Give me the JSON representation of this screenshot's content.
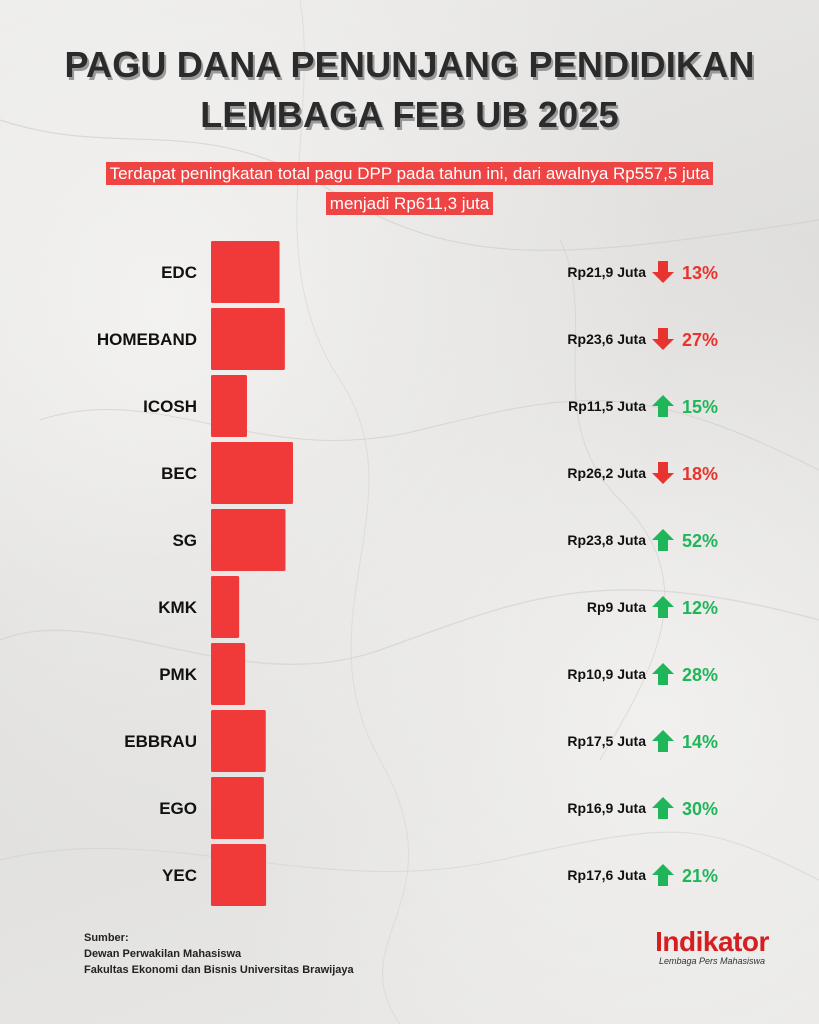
{
  "title_line1": "PAGU DANA PENUNJANG PENDIDIKAN",
  "title_line2": "LEMBAGA FEB UB 2025",
  "subtitle": "Terdapat peningkatan total pagu DPP pada tahun ini, dari awalnya Rp557,5 juta menjadi Rp611,3 juta",
  "colors": {
    "bar": "#f03a3a",
    "up": "#1fb65a",
    "down": "#e8342e",
    "text": "#111111"
  },
  "chart_data": {
    "type": "bar",
    "orientation": "horizontal",
    "title": "PAGU DANA PENUNJANG PENDIDIKAN LEMBAGA FEB UB 2025",
    "xlabel": "",
    "ylabel": "",
    "xlim": [
      0,
      26.2
    ],
    "grid": false,
    "categories": [
      "EDC",
      "HOMEBAND",
      "ICOSH",
      "BEC",
      "SG",
      "KMK",
      "PMK",
      "EBBRAU",
      "EGO",
      "YEC"
    ],
    "values": [
      21.9,
      23.6,
      11.5,
      26.2,
      23.8,
      9,
      10.9,
      17.5,
      16.9,
      17.6
    ],
    "value_labels": [
      "Rp21,9 Juta",
      "Rp23,6 Juta",
      "Rp11,5 Juta",
      "Rp26,2 Juta",
      "Rp23,8 Juta",
      "Rp9 Juta",
      "Rp10,9 Juta",
      "Rp17,5 Juta",
      "Rp16,9 Juta",
      "Rp17,6 Juta"
    ],
    "changes": [
      {
        "direction": "down",
        "label": "13%"
      },
      {
        "direction": "down",
        "label": "27%"
      },
      {
        "direction": "up",
        "label": "15%"
      },
      {
        "direction": "down",
        "label": "18%"
      },
      {
        "direction": "up",
        "label": "52%"
      },
      {
        "direction": "up",
        "label": "12%"
      },
      {
        "direction": "up",
        "label": "28%"
      },
      {
        "direction": "up",
        "label": "14%"
      },
      {
        "direction": "up",
        "label": "30%"
      },
      {
        "direction": "up",
        "label": "21%"
      }
    ]
  },
  "source": {
    "heading": "Sumber:",
    "line1": "Dewan Perwakilan Mahasiswa",
    "line2": "Fakultas Ekonomi dan Bisnis Universitas Brawijaya"
  },
  "logo": {
    "name": "Indikator",
    "tagline": "Lembaga Pers Mahasiswa"
  }
}
